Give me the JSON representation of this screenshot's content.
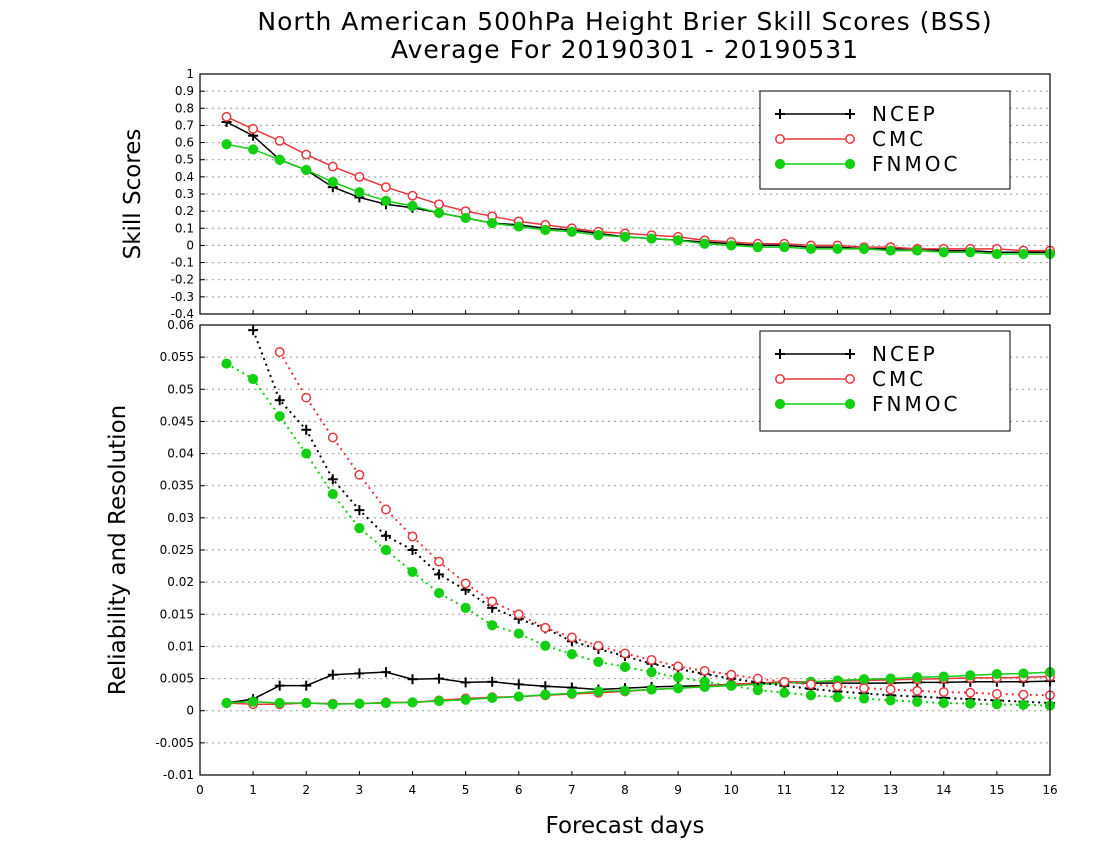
{
  "title_line1": "North American 500hPa Height Brier Skill Scores (BSS)",
  "title_line2": "Average For 20190301 - 20190531",
  "colors": {
    "NCEP": "#000000",
    "CMC": "#e8363d",
    "FNMOC": "#12cf12",
    "grid": "#9a9a9a"
  },
  "chart_data": [
    {
      "type": "line",
      "ylabel": "Skill Scores",
      "xlabel": "",
      "xlim": [
        0,
        16
      ],
      "ylim": [
        -0.4,
        1
      ],
      "x_ticks": [
        0,
        1,
        2,
        3,
        4,
        5,
        6,
        7,
        8,
        9,
        10,
        11,
        12,
        13,
        14,
        15,
        16
      ],
      "y_ticks": [
        -0.4,
        -0.3,
        -0.2,
        -0.1,
        0,
        0.1,
        0.2,
        0.3,
        0.4,
        0.5,
        0.6,
        0.7,
        0.8,
        0.9,
        1
      ],
      "y_tick_labels": [
        "-0.4",
        "-0.3",
        "-0.2",
        "-0.1",
        "0",
        "0.1",
        "0.2",
        "0.3",
        "0.4",
        "0.5",
        "0.6",
        "0.7",
        "0.8",
        "0.9",
        "1"
      ],
      "grid": "dotted horizontal",
      "legend_position": "top-right",
      "x": [
        0.5,
        1,
        1.5,
        2,
        2.5,
        3,
        3.5,
        4,
        4.5,
        5,
        5.5,
        6,
        6.5,
        7,
        7.5,
        8,
        8.5,
        9,
        9.5,
        10,
        10.5,
        11,
        11.5,
        12,
        12.5,
        13,
        13.5,
        14,
        14.5,
        15,
        15.5,
        16
      ],
      "series": [
        {
          "name": "NCEP",
          "marker": "plus",
          "style": "solid",
          "values": [
            0.72,
            0.64,
            0.5,
            0.44,
            0.34,
            0.28,
            0.24,
            0.22,
            0.19,
            0.16,
            0.13,
            0.12,
            0.1,
            0.09,
            0.07,
            0.05,
            0.04,
            0.03,
            0.02,
            0.01,
            0.0,
            0.0,
            -0.01,
            -0.01,
            -0.02,
            -0.02,
            -0.02,
            -0.03,
            -0.03,
            -0.04,
            -0.04,
            -0.04
          ]
        },
        {
          "name": "CMC",
          "marker": "open-circle",
          "style": "solid",
          "values": [
            0.75,
            0.68,
            0.61,
            0.53,
            0.46,
            0.4,
            0.34,
            0.29,
            0.24,
            0.2,
            0.17,
            0.14,
            0.12,
            0.1,
            0.08,
            0.07,
            0.06,
            0.05,
            0.03,
            0.02,
            0.01,
            0.01,
            0.0,
            0.0,
            -0.01,
            -0.01,
            -0.02,
            -0.02,
            -0.02,
            -0.02,
            -0.03,
            -0.03
          ]
        },
        {
          "name": "FNMOC",
          "marker": "filled-circle",
          "style": "solid",
          "values": [
            0.59,
            0.56,
            0.5,
            0.44,
            0.37,
            0.31,
            0.26,
            0.23,
            0.19,
            0.16,
            0.13,
            0.11,
            0.09,
            0.08,
            0.06,
            0.05,
            0.04,
            0.03,
            0.01,
            0.0,
            -0.01,
            -0.01,
            -0.02,
            -0.02,
            -0.02,
            -0.03,
            -0.03,
            -0.04,
            -0.04,
            -0.05,
            -0.05,
            -0.05
          ]
        }
      ]
    },
    {
      "type": "line",
      "ylabel": "Reliability and Resolution",
      "xlabel": "Forecast days",
      "xlim": [
        0,
        16
      ],
      "ylim": [
        -0.01,
        0.06
      ],
      "x_ticks": [
        0,
        1,
        2,
        3,
        4,
        5,
        6,
        7,
        8,
        9,
        10,
        11,
        12,
        13,
        14,
        15,
        16
      ],
      "y_ticks": [
        -0.01,
        -0.005,
        0,
        0.005,
        0.01,
        0.015,
        0.02,
        0.025,
        0.03,
        0.035,
        0.04,
        0.045,
        0.05,
        0.055,
        0.06
      ],
      "y_tick_labels": [
        "-0.01",
        "-0.005",
        "0",
        "0.005",
        "0.01",
        "0.015",
        "0.02",
        "0.025",
        "0.03",
        "0.035",
        "0.04",
        "0.045",
        "0.05",
        "0.055",
        "0.06"
      ],
      "grid": "dotted horizontal",
      "legend_position": "top-right",
      "x": [
        0.5,
        1,
        1.5,
        2,
        2.5,
        3,
        3.5,
        4,
        4.5,
        5,
        5.5,
        6,
        6.5,
        7,
        7.5,
        8,
        8.5,
        9,
        9.5,
        10,
        10.5,
        11,
        11.5,
        12,
        12.5,
        13,
        13.5,
        14,
        14.5,
        15,
        15.5,
        16
      ],
      "series": [
        {
          "name": "NCEP",
          "marker": "plus",
          "style": "solid",
          "metric": "reliability",
          "values": [
            0.0012,
            0.0018,
            0.0039,
            0.0039,
            0.0056,
            0.0058,
            0.006,
            0.0049,
            0.005,
            0.0044,
            0.0045,
            0.0041,
            0.0038,
            0.0036,
            0.0033,
            0.0035,
            0.0037,
            0.0038,
            0.0039,
            0.0041,
            0.0043,
            0.0044,
            0.0043,
            0.0043,
            0.0043,
            0.0043,
            0.0044,
            0.0044,
            0.0045,
            0.0045,
            0.0045,
            0.0046
          ]
        },
        {
          "name": "CMC",
          "marker": "open-circle",
          "style": "solid",
          "metric": "reliability",
          "values": [
            0.0012,
            0.001,
            0.001,
            0.0012,
            0.0011,
            0.0011,
            0.0013,
            0.0013,
            0.0016,
            0.0019,
            0.0021,
            0.0022,
            0.0024,
            0.0026,
            0.0028,
            0.003,
            0.0033,
            0.0035,
            0.0038,
            0.0041,
            0.0043,
            0.0045,
            0.0045,
            0.0046,
            0.0047,
            0.0048,
            0.0049,
            0.005,
            0.0051,
            0.0051,
            0.0052,
            0.0053
          ]
        },
        {
          "name": "FNMOC",
          "marker": "filled-circle",
          "style": "solid",
          "metric": "reliability",
          "values": [
            0.0012,
            0.0014,
            0.0012,
            0.0012,
            0.001,
            0.0011,
            0.0012,
            0.0013,
            0.0015,
            0.0017,
            0.002,
            0.0022,
            0.0025,
            0.0027,
            0.003,
            0.0031,
            0.0033,
            0.0035,
            0.0037,
            0.0039,
            0.0041,
            0.0043,
            0.0045,
            0.0047,
            0.0049,
            0.005,
            0.0052,
            0.0053,
            0.0055,
            0.0057,
            0.0058,
            0.006
          ]
        },
        {
          "name": "NCEP",
          "marker": "plus",
          "style": "dotted",
          "metric": "resolution",
          "values": [
            null,
            0.0592,
            0.0483,
            0.0437,
            0.036,
            0.0312,
            0.0272,
            0.025,
            0.0212,
            0.0188,
            0.016,
            0.0143,
            0.0128,
            0.0108,
            0.0096,
            0.0085,
            0.0073,
            0.0065,
            0.0057,
            0.005,
            0.0044,
            0.0039,
            0.0034,
            0.003,
            0.0027,
            0.0024,
            0.0022,
            0.002,
            0.0018,
            0.0016,
            0.0014,
            0.0012
          ]
        },
        {
          "name": "CMC",
          "marker": "open-circle",
          "style": "dotted",
          "metric": "resolution",
          "values": [
            null,
            null,
            0.0558,
            0.0487,
            0.0425,
            0.0367,
            0.0313,
            0.0271,
            0.0232,
            0.0198,
            0.017,
            0.015,
            0.0129,
            0.0114,
            0.0101,
            0.0089,
            0.0079,
            0.0069,
            0.0062,
            0.0056,
            0.005,
            0.0045,
            0.0041,
            0.0038,
            0.0035,
            0.0033,
            0.0031,
            0.0029,
            0.0028,
            0.0026,
            0.0025,
            0.0024
          ]
        },
        {
          "name": "FNMOC",
          "marker": "filled-circle",
          "style": "dotted",
          "metric": "resolution",
          "values": [
            0.054,
            0.0516,
            0.0458,
            0.04,
            0.0337,
            0.0284,
            0.025,
            0.0216,
            0.0183,
            0.016,
            0.0133,
            0.012,
            0.0101,
            0.0088,
            0.0076,
            0.0068,
            0.006,
            0.0052,
            0.0045,
            0.0039,
            0.0032,
            0.0028,
            0.0024,
            0.0021,
            0.0019,
            0.0016,
            0.0014,
            0.0012,
            0.0011,
            0.001,
            0.0009,
            0.0008
          ]
        }
      ]
    }
  ]
}
